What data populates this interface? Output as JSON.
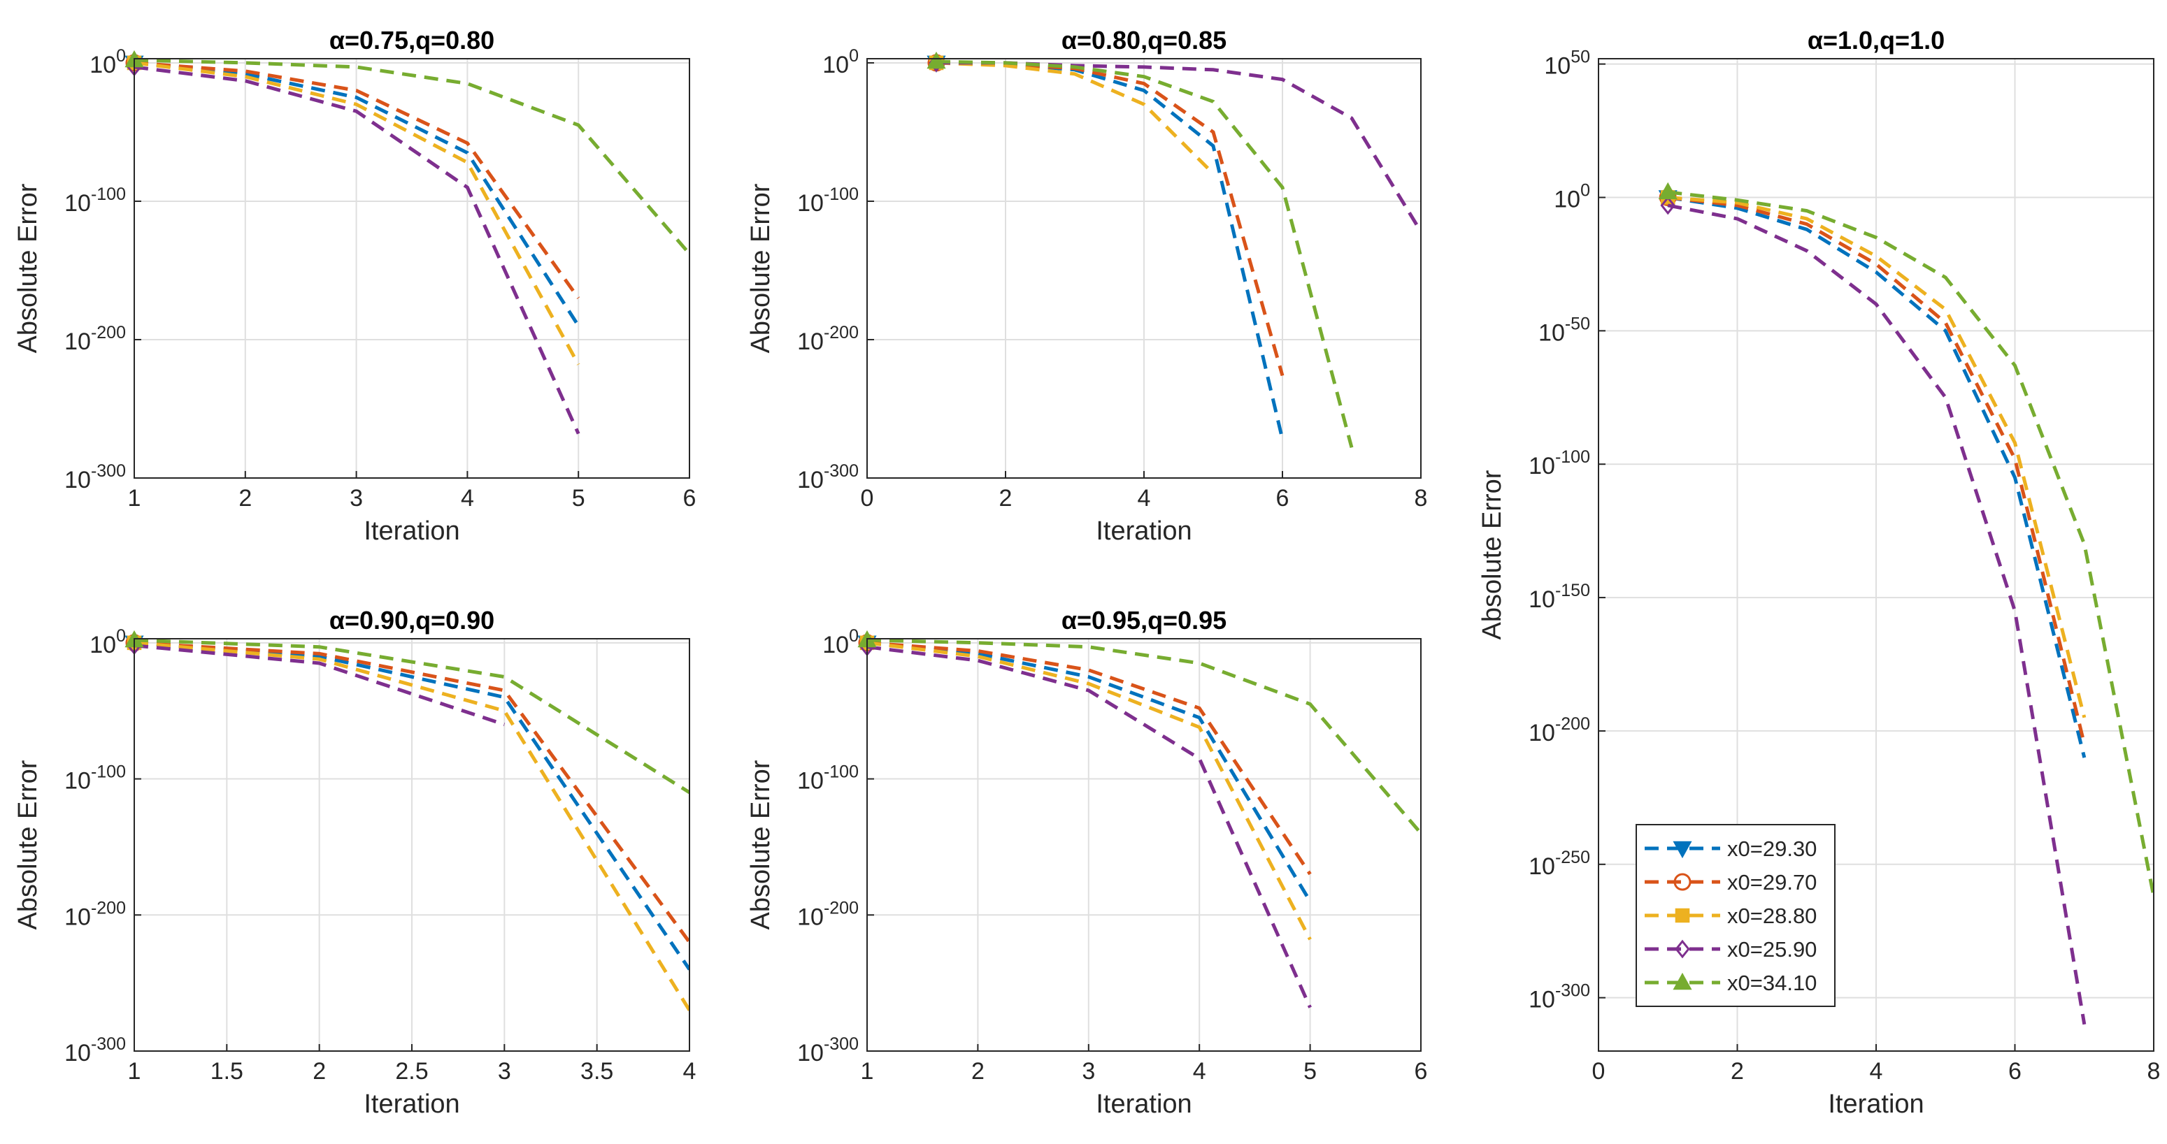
{
  "chart_data": [
    {
      "type": "line",
      "title": "α=0.75,q=0.80",
      "xlabel": "Iteration",
      "ylabel": "Absolute Error",
      "yscale": "log",
      "grid": true,
      "xlim": [
        1,
        6
      ],
      "xticks": [
        1,
        2,
        3,
        4,
        5,
        6
      ],
      "ylim": [
        1e-300,
        1000.0
      ],
      "yticks": [
        {
          "value": 1,
          "label": "10",
          "exponent": "0"
        },
        {
          "value": 1e-100,
          "label": "10",
          "exponent": "-100"
        },
        {
          "value": 1e-200,
          "label": "10",
          "exponent": "-200"
        },
        {
          "value": 1e-300,
          "label": "10",
          "exponent": "-300"
        }
      ],
      "series": [
        {
          "color": "#0072BD",
          "marker": "v",
          "x": [
            1,
            2,
            3,
            4,
            5
          ],
          "values": [
            1,
            1e-08,
            1e-25,
            1e-65,
            1e-190
          ]
        },
        {
          "color": "#D95319",
          "marker": "o",
          "x": [
            1,
            2,
            3,
            4,
            5
          ],
          "values": [
            1,
            1e-06,
            1e-20,
            1e-58,
            1e-170
          ]
        },
        {
          "color": "#EDB120",
          "marker": "s",
          "x": [
            1,
            2,
            3,
            4,
            5
          ],
          "values": [
            1,
            1e-10,
            1e-30,
            1e-72,
            1e-218
          ]
        },
        {
          "color": "#7E2F8E",
          "marker": "d",
          "x": [
            1,
            2,
            3,
            4,
            5
          ],
          "values": [
            0.001,
            1e-13,
            1e-35,
            1e-90,
            1e-268
          ]
        },
        {
          "color": "#77AC30",
          "marker": "^",
          "x": [
            1,
            2,
            3,
            4,
            5,
            6
          ],
          "values": [
            100,
            1,
            0.001,
            1e-15,
            1e-45,
            1e-138
          ]
        }
      ]
    },
    {
      "type": "line",
      "title": "α=0.80,q=0.85",
      "xlabel": "Iteration",
      "ylabel": "Absolute Error",
      "yscale": "log",
      "grid": true,
      "xlim": [
        0,
        8
      ],
      "xticks": [
        0,
        2,
        4,
        6,
        8
      ],
      "ylim": [
        1e-300,
        1000.0
      ],
      "yticks": [
        {
          "value": 1,
          "label": "10",
          "exponent": "0"
        },
        {
          "value": 1e-100,
          "label": "10",
          "exponent": "-100"
        },
        {
          "value": 1e-200,
          "label": "10",
          "exponent": "-200"
        },
        {
          "value": 1e-300,
          "label": "10",
          "exponent": "-300"
        }
      ],
      "series": [
        {
          "color": "#0072BD",
          "marker": "v",
          "x": [
            1,
            2,
            3,
            4,
            5,
            6
          ],
          "values": [
            1,
            0.1,
            1e-05,
            1e-20,
            1e-60,
            1e-272
          ]
        },
        {
          "color": "#D95319",
          "marker": "o",
          "x": [
            1,
            2,
            3,
            4,
            5,
            6
          ],
          "values": [
            1,
            0.1,
            0.0001,
            1e-15,
            1e-50,
            1e-226
          ]
        },
        {
          "color": "#EDB120",
          "marker": "s",
          "x": [
            1,
            2,
            3,
            4,
            5
          ],
          "values": [
            1,
            0.01,
            1e-08,
            1e-30,
            1e-80
          ]
        },
        {
          "color": "#7E2F8E",
          "marker": "d",
          "x": [
            1,
            2,
            3,
            4,
            5,
            6,
            7,
            8
          ],
          "values": [
            1,
            1,
            0.01,
            0.001,
            1e-05,
            1e-12,
            1e-40,
            1e-122
          ]
        },
        {
          "color": "#77AC30",
          "marker": "^",
          "x": [
            1,
            2,
            3,
            4,
            5,
            6,
            7
          ],
          "values": [
            10,
            1,
            0.001,
            1e-10,
            1e-28,
            1e-90,
            1e-278
          ]
        }
      ]
    },
    {
      "type": "line",
      "title": "α=0.90,q=0.90",
      "xlabel": "Iteration",
      "ylabel": "Absolute Error",
      "yscale": "log",
      "grid": true,
      "xlim": [
        1,
        4
      ],
      "xticks": [
        1,
        1.5,
        2,
        2.5,
        3,
        3.5,
        4
      ],
      "ylim": [
        1e-300,
        1000.0
      ],
      "yticks": [
        {
          "value": 1,
          "label": "10",
          "exponent": "0"
        },
        {
          "value": 1e-100,
          "label": "10",
          "exponent": "-100"
        },
        {
          "value": 1e-200,
          "label": "10",
          "exponent": "-200"
        },
        {
          "value": 1e-300,
          "label": "10",
          "exponent": "-300"
        }
      ],
      "series": [
        {
          "color": "#0072BD",
          "marker": "v",
          "x": [
            1,
            2,
            3,
            4
          ],
          "values": [
            1,
            1e-10,
            1e-40,
            1e-240
          ]
        },
        {
          "color": "#D95319",
          "marker": "o",
          "x": [
            1,
            2,
            3,
            4
          ],
          "values": [
            1,
            1e-08,
            1e-35,
            1e-220
          ]
        },
        {
          "color": "#EDB120",
          "marker": "s",
          "x": [
            1,
            2,
            3,
            4
          ],
          "values": [
            1,
            1e-12,
            1e-50,
            1e-270
          ]
        },
        {
          "color": "#7E2F8E",
          "marker": "d",
          "x": [
            1,
            2,
            3
          ],
          "values": [
            0.01,
            1e-15,
            1e-60
          ]
        },
        {
          "color": "#77AC30",
          "marker": "^",
          "x": [
            1,
            2,
            3,
            4
          ],
          "values": [
            100,
            0.001,
            1e-25,
            1e-110
          ]
        }
      ]
    },
    {
      "type": "line",
      "title": "α=0.95,q=0.95",
      "xlabel": "Iteration",
      "ylabel": "Absolute Error",
      "yscale": "log",
      "grid": true,
      "xlim": [
        1,
        6
      ],
      "xticks": [
        1,
        2,
        3,
        4,
        5,
        6
      ],
      "ylim": [
        1e-300,
        1000.0
      ],
      "yticks": [
        {
          "value": 1,
          "label": "10",
          "exponent": "0"
        },
        {
          "value": 1e-100,
          "label": "10",
          "exponent": "-100"
        },
        {
          "value": 1e-200,
          "label": "10",
          "exponent": "-200"
        },
        {
          "value": 1e-300,
          "label": "10",
          "exponent": "-300"
        }
      ],
      "series": [
        {
          "color": "#0072BD",
          "marker": "v",
          "x": [
            1,
            2,
            3,
            4,
            5
          ],
          "values": [
            1,
            1e-08,
            1e-25,
            1e-55,
            1e-190
          ]
        },
        {
          "color": "#D95319",
          "marker": "o",
          "x": [
            1,
            2,
            3,
            4,
            5
          ],
          "values": [
            1,
            1e-06,
            1e-20,
            1e-48,
            1e-170
          ]
        },
        {
          "color": "#EDB120",
          "marker": "s",
          "x": [
            1,
            2,
            3,
            4,
            5
          ],
          "values": [
            1,
            1e-10,
            1e-30,
            1e-62,
            1e-218
          ]
        },
        {
          "color": "#7E2F8E",
          "marker": "d",
          "x": [
            1,
            2,
            3,
            4,
            5
          ],
          "values": [
            0.001,
            1e-13,
            1e-35,
            1e-85,
            1e-268
          ]
        },
        {
          "color": "#77AC30",
          "marker": "^",
          "x": [
            1,
            2,
            3,
            4,
            5,
            6
          ],
          "values": [
            100,
            1,
            0.001,
            1e-15,
            1e-45,
            1e-140
          ]
        }
      ]
    },
    {
      "type": "line",
      "title": "α=1.0,q=1.0",
      "xlabel": "Iteration",
      "ylabel": "Absolute Error",
      "yscale": "log",
      "grid": true,
      "legend": "lower left",
      "xlim": [
        0,
        8
      ],
      "xticks": [
        0,
        2,
        4,
        6,
        8
      ],
      "ylim": [
        1e-320,
        1e+52
      ],
      "yticks": [
        {
          "value": 1e+50,
          "label": "10",
          "exponent": "50"
        },
        {
          "value": 1,
          "label": "10",
          "exponent": "0"
        },
        {
          "value": 1e-50,
          "label": "10",
          "exponent": "-50"
        },
        {
          "value": 1e-100,
          "label": "10",
          "exponent": "-100"
        },
        {
          "value": 1e-150,
          "label": "10",
          "exponent": "-150"
        },
        {
          "value": 1e-200,
          "label": "10",
          "exponent": "-200"
        },
        {
          "value": 1e-250,
          "label": "10",
          "exponent": "-250"
        },
        {
          "value": 1e-300,
          "label": "10",
          "exponent": "-300"
        }
      ],
      "series": [
        {
          "name": "x0=29.30",
          "color": "#0072BD",
          "marker": "v",
          "x": [
            1,
            2,
            3,
            4,
            5,
            6,
            7
          ],
          "values": [
            1,
            0.0001,
            1e-12,
            1e-28,
            1e-50,
            1e-105,
            1e-210
          ]
        },
        {
          "name": "x0=29.70",
          "color": "#D95319",
          "marker": "o",
          "x": [
            1,
            2,
            3,
            4,
            5,
            6,
            7
          ],
          "values": [
            1,
            0.001,
            1e-10,
            1e-25,
            1e-47,
            1e-98,
            1e-205
          ]
        },
        {
          "name": "x0=28.80",
          "color": "#EDB120",
          "marker": "s",
          "x": [
            1,
            2,
            3,
            4,
            5,
            6,
            7
          ],
          "values": [
            1,
            0.01,
            1e-08,
            1e-22,
            1e-42,
            1e-92,
            1e-195
          ]
        },
        {
          "name": "x0=25.90",
          "color": "#7E2F8E",
          "marker": "d",
          "x": [
            1,
            2,
            3,
            4,
            5,
            6,
            7
          ],
          "values": [
            0.001,
            1e-08,
            1e-20,
            1e-40,
            1e-75,
            1e-155,
            1e-310
          ]
        },
        {
          "name": "x0=34.10",
          "color": "#77AC30",
          "marker": "^",
          "x": [
            1,
            2,
            3,
            4,
            5,
            6,
            7,
            8
          ],
          "values": [
            100,
            0.1,
            1e-05,
            1e-15,
            1e-30,
            1e-63,
            1e-130,
            1e-262
          ]
        }
      ]
    }
  ]
}
